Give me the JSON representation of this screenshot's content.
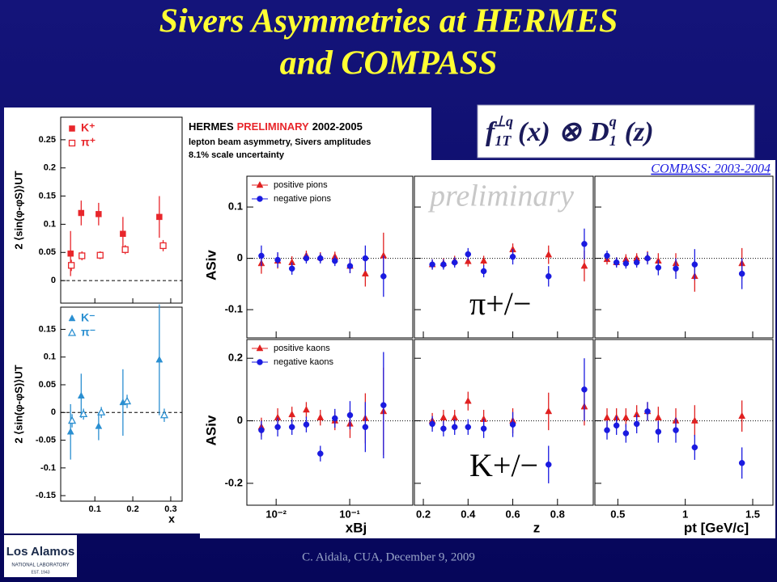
{
  "slide": {
    "title": [
      "Sivers Asymmetries at HERMES",
      "and COMPASS"
    ],
    "footer": "C. Aidala, CUA, December 9, 2009",
    "logo": {
      "name": "Los Alamos",
      "sub": "NATIONAL LABORATORY",
      "est": "EST. 1943"
    }
  },
  "formula": {
    "f": "f",
    "f_sub": "1T",
    "f_sup": "⊥q",
    "x": "(x)",
    "op": "⊗",
    "d": "D",
    "d_sub": "1",
    "d_sup": "q",
    "z": "(z)"
  },
  "chart_data": [
    {
      "type": "scatter",
      "title_parts": [
        "HERMES",
        "PRELIMINARY",
        "2002-2005"
      ],
      "notes": [
        "lepton beam asymmetry, Sivers amplitudes",
        "8.1% scale uncertainty"
      ],
      "xlabel": "x",
      "xlim": [
        0.01,
        0.33
      ],
      "xticks": [
        0.1,
        0.2,
        0.3
      ],
      "panels": [
        {
          "ylabel": "2 ⟨sin(φ-φS)⟩UT",
          "ylim": [
            -0.04,
            0.29
          ],
          "yticks": [
            0,
            0.05,
            0.1,
            0.15,
            0.2,
            0.25
          ],
          "series": [
            {
              "name": "K⁺",
              "color": "#e8262b",
              "marker": "square",
              "x": [
                0.036,
                0.064,
                0.11,
                0.174,
                0.27
              ],
              "values": [
                0.048,
                0.12,
                0.118,
                0.083,
                0.113
              ],
              "errors": [
                0.04,
                0.022,
                0.02,
                0.03,
                0.037
              ]
            },
            {
              "name": "π⁺",
              "color": "#e8262b",
              "marker": "square-open",
              "x": [
                0.038,
                0.066,
                0.114,
                0.18,
                0.28
              ],
              "values": [
                0.027,
                0.044,
                0.045,
                0.055,
                0.062
              ],
              "errors": [
                0.01,
                0.008,
                0.007,
                0.008,
                0.01
              ]
            }
          ]
        },
        {
          "ylabel": "2 ⟨sin(φ-φS)⟩UT",
          "ylim": [
            -0.16,
            0.19
          ],
          "yticks": [
            -0.15,
            -0.1,
            -0.05,
            0,
            0.05,
            0.1,
            0.15
          ],
          "series": [
            {
              "name": "K⁻",
              "color": "#2a8fd1",
              "marker": "triangle",
              "x": [
                0.036,
                0.064,
                0.11,
                0.174,
                0.27
              ],
              "values": [
                -0.035,
                0.03,
                -0.025,
                0.018,
                0.095
              ],
              "errors": [
                0.05,
                0.04,
                0.025,
                0.06,
                0.1
              ]
            },
            {
              "name": "π⁻",
              "color": "#2a8fd1",
              "marker": "triangle-open",
              "x": [
                0.04,
                0.07,
                0.117,
                0.185,
                0.283
              ],
              "values": [
                -0.015,
                -0.003,
                0,
                0.02,
                -0.005
              ],
              "errors": [
                0.012,
                0.01,
                0.01,
                0.012,
                0.012
              ]
            }
          ]
        }
      ]
    },
    {
      "type": "scatter-grid",
      "title": "COMPASS: 2003-2004",
      "annotation": "preliminary",
      "ylabel": "ASiv",
      "columns": [
        {
          "xlabel": "xBj",
          "log_x": true,
          "xlim": [
            0.004,
            0.72
          ],
          "xticks": [
            {
              "value": 0.01,
              "label": "10⁻²"
            },
            {
              "value": 0.1,
              "label": "10⁻¹"
            }
          ]
        },
        {
          "xlabel": "z",
          "log_x": false,
          "xlim": [
            0.16,
            0.96
          ],
          "xticks": [
            0.2,
            0.4,
            0.6,
            0.8
          ]
        },
        {
          "xlabel": "pt [GeV/c]",
          "log_x": false,
          "xlim": [
            0.33,
            1.65
          ],
          "xticks": [
            0.5,
            1,
            1.5
          ]
        }
      ],
      "rows": [
        {
          "label": "π+/−",
          "ylim": [
            -0.155,
            0.16
          ],
          "yticks": [
            -0.1,
            0,
            0.1
          ],
          "series": [
            {
              "name": "positive pions",
              "color": "#e02020",
              "marker": "triangle"
            },
            {
              "name": "negative pions",
              "color": "#1a1ae0",
              "marker": "circle"
            }
          ],
          "panels": [
            [
              {
                "x": [
                  0.0063,
                  0.0105,
                  0.0164,
                  0.0257,
                  0.0399,
                  0.0629,
                  0.101,
                  0.163,
                  0.288
                ],
                "values": [
                  -0.01,
                  -0.005,
                  -0.008,
                  0.005,
                  0.002,
                  0.003,
                  -0.015,
                  -0.03,
                  0.005
                ],
                "errors": [
                  0.02,
                  0.015,
                  0.012,
                  0.01,
                  0.01,
                  0.01,
                  0.014,
                  0.025,
                  0.045
                ]
              },
              {
                "x": [
                  0.0063,
                  0.0105,
                  0.0164,
                  0.0257,
                  0.0399,
                  0.0629,
                  0.101,
                  0.163,
                  0.288
                ],
                "values": [
                  0.005,
                  -0.003,
                  -0.02,
                  0,
                  0,
                  -0.005,
                  -0.015,
                  0,
                  -0.035
                ],
                "errors": [
                  0.02,
                  0.015,
                  0.012,
                  0.01,
                  0.01,
                  0.01,
                  0.014,
                  0.025,
                  0.04
                ]
              }
            ],
            [
              {
                "x": [
                  0.24,
                  0.29,
                  0.34,
                  0.4,
                  0.47,
                  0.6,
                  0.76,
                  0.92
                ],
                "values": [
                  -0.012,
                  -0.01,
                  -0.005,
                  -0.006,
                  -0.005,
                  0.017,
                  0.007,
                  -0.015
                ],
                "errors": [
                  0.01,
                  0.01,
                  0.01,
                  0.01,
                  0.01,
                  0.012,
                  0.018,
                  0.03
                ]
              },
              {
                "x": [
                  0.24,
                  0.29,
                  0.34,
                  0.4,
                  0.47,
                  0.6,
                  0.76,
                  0.92
                ],
                "values": [
                  -0.012,
                  -0.012,
                  -0.008,
                  0.008,
                  -0.025,
                  0.003,
                  -0.035,
                  0.028
                ],
                "errors": [
                  0.01,
                  0.01,
                  0.01,
                  0.012,
                  0.012,
                  0.015,
                  0.02,
                  0.03
                ]
              }
            ],
            [
              {
                "x": [
                  0.42,
                  0.49,
                  0.56,
                  0.64,
                  0.72,
                  0.8,
                  0.93,
                  1.07,
                  1.42
                ],
                "values": [
                  -0.002,
                  -0.008,
                  -0.002,
                  0,
                  0.002,
                  -0.005,
                  -0.01,
                  -0.035,
                  -0.01
                ],
                "errors": [
                  0.01,
                  0.01,
                  0.01,
                  0.01,
                  0.012,
                  0.015,
                  0.02,
                  0.03,
                  0.03
                ]
              },
              {
                "x": [
                  0.42,
                  0.49,
                  0.56,
                  0.64,
                  0.72,
                  0.8,
                  0.93,
                  1.07,
                  1.42
                ],
                "values": [
                  0.005,
                  -0.008,
                  -0.01,
                  -0.008,
                  0,
                  -0.018,
                  -0.02,
                  -0.012,
                  -0.03
                ],
                "errors": [
                  0.01,
                  0.01,
                  0.01,
                  0.01,
                  0.012,
                  0.015,
                  0.02,
                  0.03,
                  0.03
                ]
              }
            ]
          ]
        },
        {
          "label": "K+/−",
          "ylim": [
            -0.27,
            0.26
          ],
          "yticks": [
            -0.2,
            0,
            0.2
          ],
          "series": [
            {
              "name": "positive kaons",
              "color": "#e02020",
              "marker": "triangle"
            },
            {
              "name": "negative kaons",
              "color": "#1a1ae0",
              "marker": "circle"
            }
          ],
          "panels": [
            [
              {
                "x": [
                  0.0063,
                  0.0105,
                  0.0164,
                  0.0257,
                  0.0399,
                  0.0629,
                  0.101,
                  0.163,
                  0.288
                ],
                "values": [
                  -0.02,
                  0.01,
                  0.02,
                  0.035,
                  0.01,
                  0,
                  -0.01,
                  0.008,
                  0.03
                ],
                "errors": [
                  0.03,
                  0.03,
                  0.025,
                  0.025,
                  0.025,
                  0.03,
                  0.045,
                  0.08,
                  0.14
                ]
              },
              {
                "x": [
                  0.0063,
                  0.0105,
                  0.0164,
                  0.0257,
                  0.0399,
                  0.0629,
                  0.101,
                  0.163,
                  0.288
                ],
                "values": [
                  -0.03,
                  -0.02,
                  -0.02,
                  -0.012,
                  -0.105,
                  0.008,
                  0.018,
                  -0.02,
                  0.05
                ],
                "errors": [
                  0.03,
                  0.03,
                  0.025,
                  0.025,
                  0.025,
                  0.03,
                  0.045,
                  0.08,
                  0.17
                ]
              }
            ],
            [
              {
                "x": [
                  0.24,
                  0.29,
                  0.34,
                  0.4,
                  0.47,
                  0.6,
                  0.76,
                  0.92
                ],
                "values": [
                  0,
                  0.01,
                  0.01,
                  0.063,
                  0.005,
                  0,
                  0.03,
                  0.045
                ],
                "errors": [
                  0.025,
                  0.025,
                  0.025,
                  0.03,
                  0.03,
                  0.04,
                  0.06,
                  0.06
                ]
              },
              {
                "x": [
                  0.24,
                  0.29,
                  0.34,
                  0.4,
                  0.47,
                  0.6,
                  0.76,
                  0.92
                ],
                "values": [
                  -0.01,
                  -0.025,
                  -0.02,
                  -0.02,
                  -0.025,
                  -0.012,
                  -0.14,
                  0.1
                ],
                "errors": [
                  0.025,
                  0.025,
                  0.025,
                  0.025,
                  0.03,
                  0.04,
                  0.06,
                  0.1
                ]
              }
            ],
            [
              {
                "x": [
                  0.42,
                  0.49,
                  0.56,
                  0.64,
                  0.72,
                  0.8,
                  0.93,
                  1.07,
                  1.42
                ],
                "values": [
                  0.01,
                  0.01,
                  0.01,
                  0.02,
                  0.03,
                  0.01,
                  0,
                  0,
                  0.015
                ],
                "errors": [
                  0.03,
                  0.03,
                  0.03,
                  0.03,
                  0.03,
                  0.035,
                  0.04,
                  0.05,
                  0.05
                ]
              },
              {
                "x": [
                  0.42,
                  0.49,
                  0.56,
                  0.64,
                  0.72,
                  0.8,
                  0.93,
                  1.07,
                  1.42
                ],
                "values": [
                  -0.03,
                  -0.015,
                  -0.04,
                  -0.01,
                  0.03,
                  -0.035,
                  -0.03,
                  -0.085,
                  -0.135
                ],
                "errors": [
                  0.03,
                  0.03,
                  0.03,
                  0.03,
                  0.03,
                  0.035,
                  0.04,
                  0.04,
                  0.05
                ]
              }
            ]
          ]
        }
      ]
    }
  ]
}
